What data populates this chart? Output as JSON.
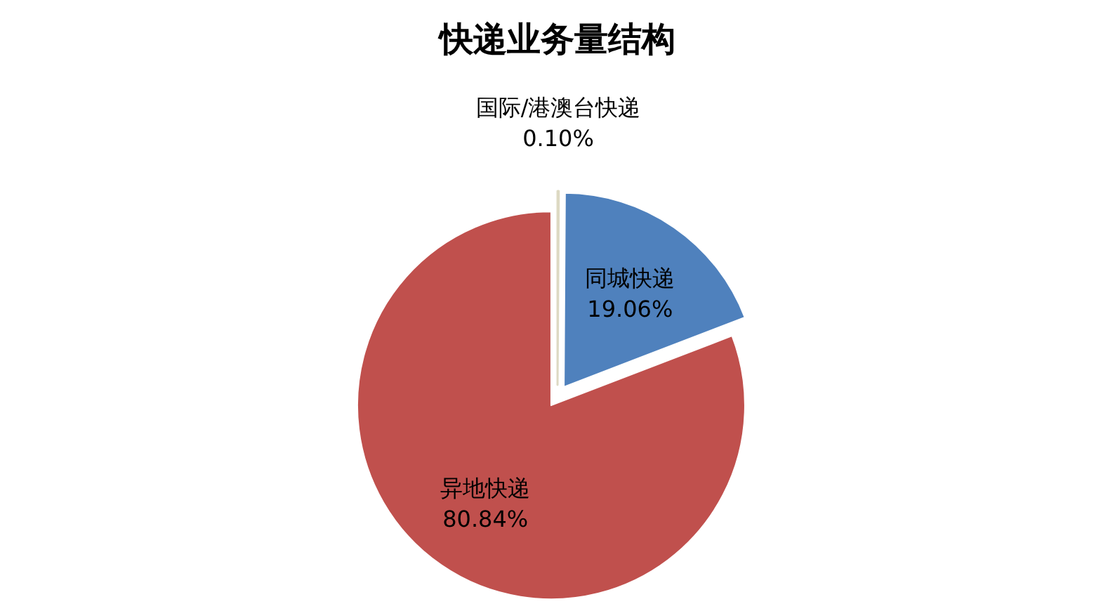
{
  "chart_data": {
    "type": "pie",
    "title": "快递业务量结构",
    "categories": [
      "国际/港澳台快递",
      "同城快递",
      "异地快递"
    ],
    "values": [
      0.1,
      19.06,
      80.84
    ],
    "value_labels": [
      "0.10%",
      "19.06%",
      "80.84%"
    ],
    "colors": [
      "#eeece1",
      "#4f81bd",
      "#c0504d"
    ]
  }
}
